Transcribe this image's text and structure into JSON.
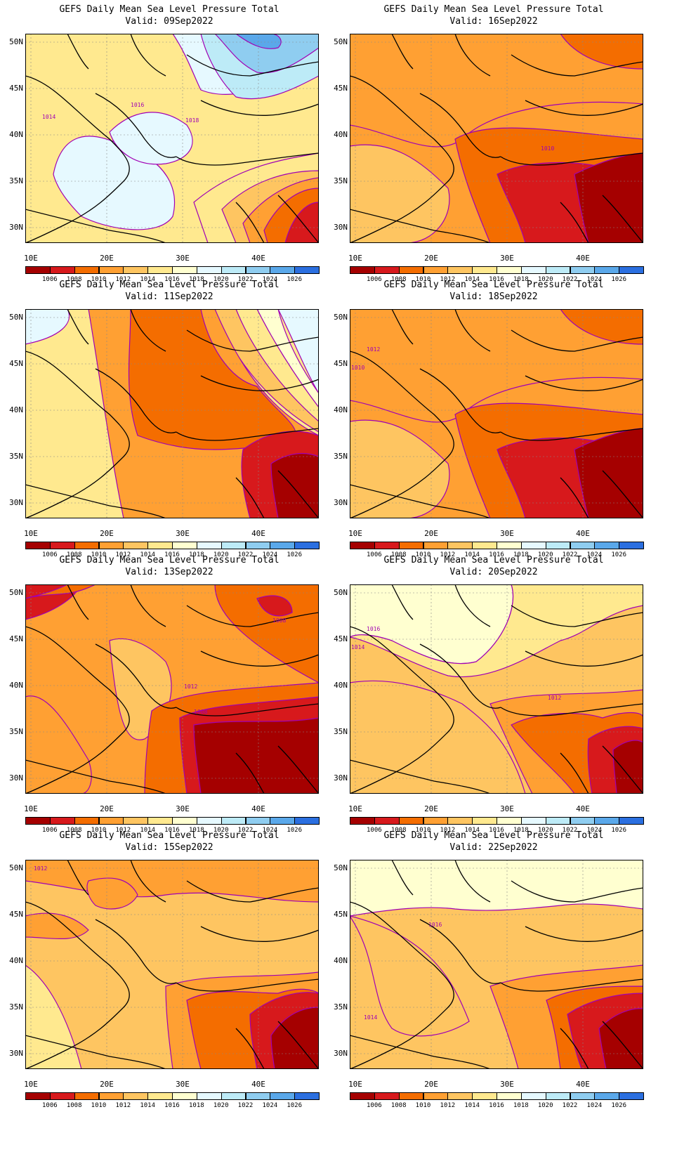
{
  "colorbar": {
    "labels": [
      "1006",
      "1008",
      "1010",
      "1012",
      "1014",
      "1016",
      "1018",
      "1020",
      "1022",
      "1024",
      "1026"
    ],
    "colors": [
      "#a50000",
      "#d7191c",
      "#f46d00",
      "#ffa033",
      "#fec561",
      "#ffe98f",
      "#ffffd0",
      "#e6f9ff",
      "#bdebf7",
      "#8fcdf0",
      "#5aa8ea",
      "#2b6fe0"
    ]
  },
  "axes": {
    "lat_labels": [
      "50N",
      "45N",
      "40N",
      "35N",
      "30N"
    ],
    "lon_labels": [
      "10E",
      "20E",
      "30E",
      "40E"
    ]
  },
  "panels": [
    {
      "title": "GEFS Daily Mean Sea Level Pressure Total",
      "valid": "Valid: 09Sep2022",
      "labels": [
        {
          "t": "1016"
        },
        {
          "t": "1018"
        },
        {
          "t": "1014"
        }
      ],
      "base": "#ffe98f",
      "scheme": "high"
    },
    {
      "title": "GEFS Daily Mean Sea Level Pressure Total",
      "valid": "Valid: 16Sep2022",
      "labels": [
        {
          "t": "1010"
        }
      ],
      "base": "#ffa033",
      "scheme": "mid"
    },
    {
      "title": "GEFS Daily Mean Sea Level Pressure Total",
      "valid": "Valid: 11Sep2022",
      "labels": [],
      "base": "#ffe98f",
      "scheme": "mixed"
    },
    {
      "title": "GEFS Daily Mean Sea Level Pressure Total",
      "valid": "Valid: 18Sep2022",
      "labels": [
        {
          "t": "1012"
        },
        {
          "t": "1010"
        }
      ],
      "base": "#ffa033",
      "scheme": "mid"
    },
    {
      "title": "GEFS Daily Mean Sea Level Pressure Total",
      "valid": "Valid: 13Sep2022",
      "labels": [
        {
          "t": "1008"
        },
        {
          "t": "1012"
        },
        {
          "t": "1008"
        }
      ],
      "base": "#ffa033",
      "scheme": "low"
    },
    {
      "title": "GEFS Daily Mean Sea Level Pressure Total",
      "valid": "Valid: 20Sep2022",
      "labels": [
        {
          "t": "1016"
        },
        {
          "t": "1014"
        },
        {
          "t": "1012"
        }
      ],
      "base": "#fec561",
      "scheme": "coolnorth"
    },
    {
      "title": "GEFS Daily Mean Sea Level Pressure Total",
      "valid": "Valid: 15Sep2022",
      "labels": [
        {
          "t": "1012"
        }
      ],
      "base": "#fec561",
      "scheme": "mid2"
    },
    {
      "title": "GEFS Daily Mean Sea Level Pressure Total",
      "valid": "Valid: 22Sep2022",
      "labels": [
        {
          "t": "1016"
        },
        {
          "t": "1014"
        }
      ],
      "base": "#fec561",
      "scheme": "coolnorth2"
    }
  ]
}
